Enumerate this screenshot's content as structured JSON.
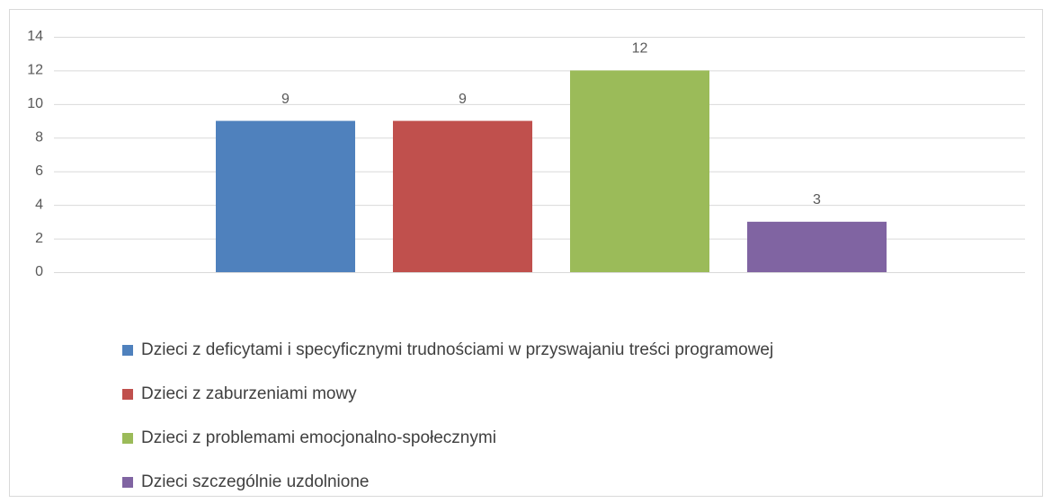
{
  "chart_data": {
    "type": "bar",
    "categories": [
      null
    ],
    "series": [
      {
        "name": "Dzieci z deficytami i specyficznymi trudnościami w przyswajaniu treści programowej",
        "color": "#4f81bd",
        "values": [
          9
        ]
      },
      {
        "name": "Dzieci z zaburzeniami mowy",
        "color": "#c0504d",
        "values": [
          9
        ]
      },
      {
        "name": "Dzieci z problemami emocjonalno-społecznymi",
        "color": "#9bbb59",
        "values": [
          12
        ]
      },
      {
        "name": "Dzieci szczególnie uzdolnione",
        "color": "#8064a2",
        "values": [
          3
        ]
      }
    ],
    "ylim": [
      0,
      14
    ],
    "yticks": [
      0,
      2,
      4,
      6,
      8,
      10,
      12,
      14
    ],
    "grid": true,
    "legend": "bottom"
  }
}
